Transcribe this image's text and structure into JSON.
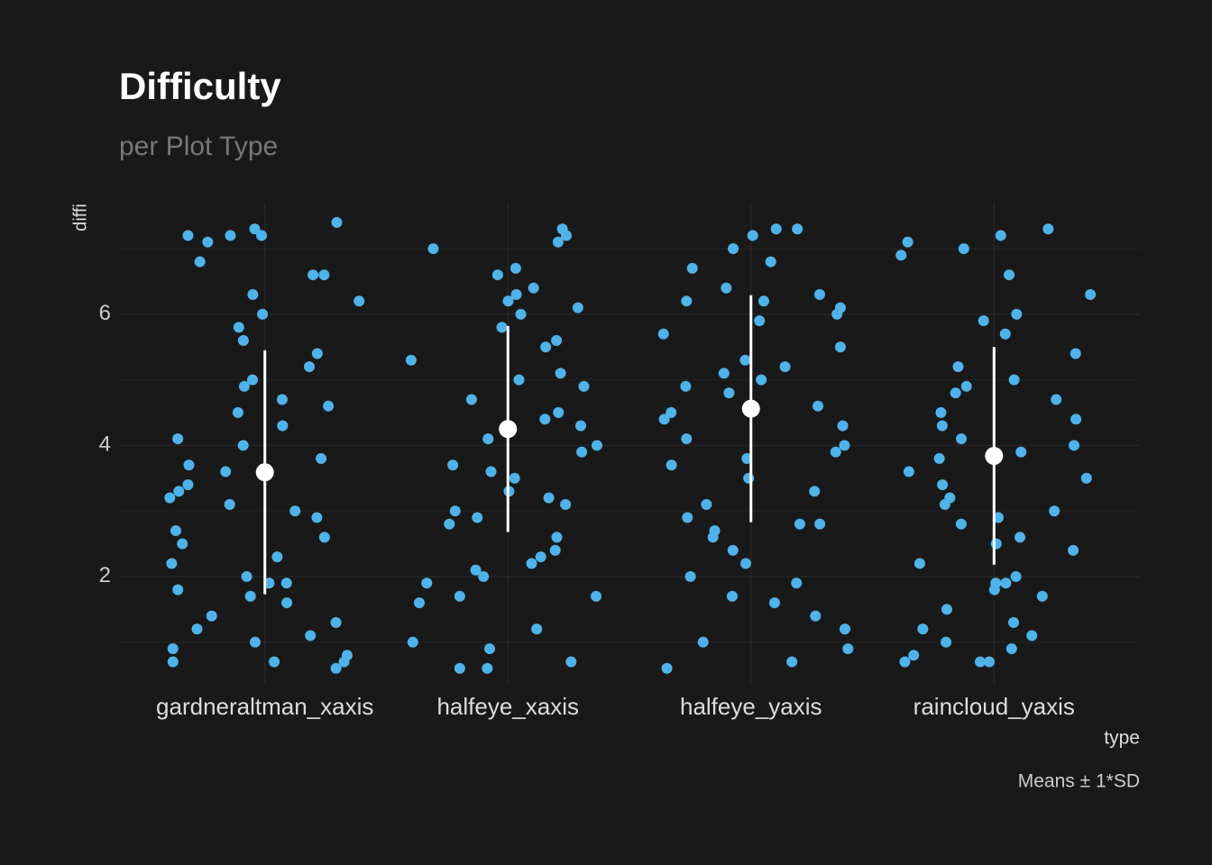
{
  "chart_data": {
    "type": "strip",
    "title": "Difficulty",
    "subtitle": "per Plot Type",
    "x_label": "type",
    "y_label": "diffi",
    "caption": "Means ± 1*SD",
    "categories": [
      "gardneraltman_xaxis",
      "halfeye_xaxis",
      "halfeye_yaxis",
      "raincloud_yaxis"
    ],
    "values": [
      [
        7.2,
        7.2,
        7.2,
        7.3,
        7.1,
        7.4,
        6.6,
        6.6,
        6.3,
        6.0,
        5.8,
        5.6,
        5.2,
        5.0,
        4.9,
        4.7,
        4.5,
        4.3,
        4.1,
        4.0,
        3.8,
        3.6,
        3.4,
        3.2,
        3.1,
        3.0,
        2.9,
        2.7,
        2.5,
        2.3,
        2.2,
        2.0,
        1.9,
        1.8,
        1.7,
        1.6,
        1.4,
        1.3,
        1.2,
        1.1,
        1.0,
        0.9,
        0.8,
        0.7,
        0.7,
        0.6,
        5.4,
        6.2,
        3.3,
        2.6,
        4.6,
        1.9,
        0.7,
        6.8,
        3.7
      ],
      [
        7.2,
        7.3,
        7.1,
        7.0,
        6.7,
        6.6,
        6.4,
        6.3,
        6.2,
        6.0,
        5.8,
        5.5,
        5.3,
        5.1,
        4.9,
        4.7,
        4.5,
        4.3,
        4.1,
        4.0,
        3.9,
        3.7,
        3.5,
        3.3,
        3.1,
        3.0,
        2.9,
        2.8,
        2.6,
        2.4,
        2.2,
        2.1,
        2.0,
        1.9,
        1.7,
        1.7,
        1.6,
        1.2,
        1.0,
        0.9,
        0.7,
        0.6,
        0.6,
        5.0,
        4.4,
        3.2,
        2.3,
        6.1,
        5.6,
        3.6
      ],
      [
        7.3,
        7.3,
        7.2,
        7.0,
        6.8,
        6.7,
        6.4,
        6.3,
        6.2,
        6.1,
        6.0,
        5.9,
        5.7,
        5.5,
        5.3,
        5.1,
        4.9,
        4.8,
        4.6,
        4.4,
        4.3,
        4.1,
        3.9,
        3.7,
        3.5,
        3.3,
        3.1,
        2.9,
        2.8,
        2.7,
        2.6,
        2.4,
        2.2,
        2.0,
        1.9,
        1.7,
        1.6,
        1.4,
        1.2,
        1.0,
        0.9,
        0.7,
        0.6,
        5.0,
        4.5,
        3.8,
        2.8,
        6.2,
        5.2,
        4.0
      ],
      [
        7.3,
        7.2,
        7.1,
        7.0,
        6.9,
        6.6,
        6.3,
        6.0,
        5.7,
        5.4,
        5.2,
        5.0,
        4.9,
        4.7,
        4.5,
        4.3,
        4.1,
        4.0,
        3.8,
        3.6,
        3.4,
        3.2,
        3.0,
        2.9,
        2.8,
        2.6,
        2.4,
        2.2,
        2.0,
        1.9,
        1.8,
        1.7,
        1.5,
        1.3,
        1.2,
        1.1,
        1.0,
        0.9,
        0.8,
        0.7,
        0.7,
        0.7,
        3.9,
        4.4,
        3.1,
        2.5,
        5.9,
        1.9,
        4.8,
        3.5
      ]
    ],
    "means": [
      3.59,
      4.25,
      4.56,
      3.84
    ],
    "sd": [
      1.86,
      1.57,
      1.73,
      1.66
    ],
    "point_color": "#4fb3ea",
    "summary_color": "#ffffff",
    "ylim": [
      0.35,
      7.7
    ],
    "yticks": [
      2,
      4,
      6
    ],
    "y_minor_gridlines": [
      1,
      3,
      5,
      7
    ],
    "grid": true
  }
}
